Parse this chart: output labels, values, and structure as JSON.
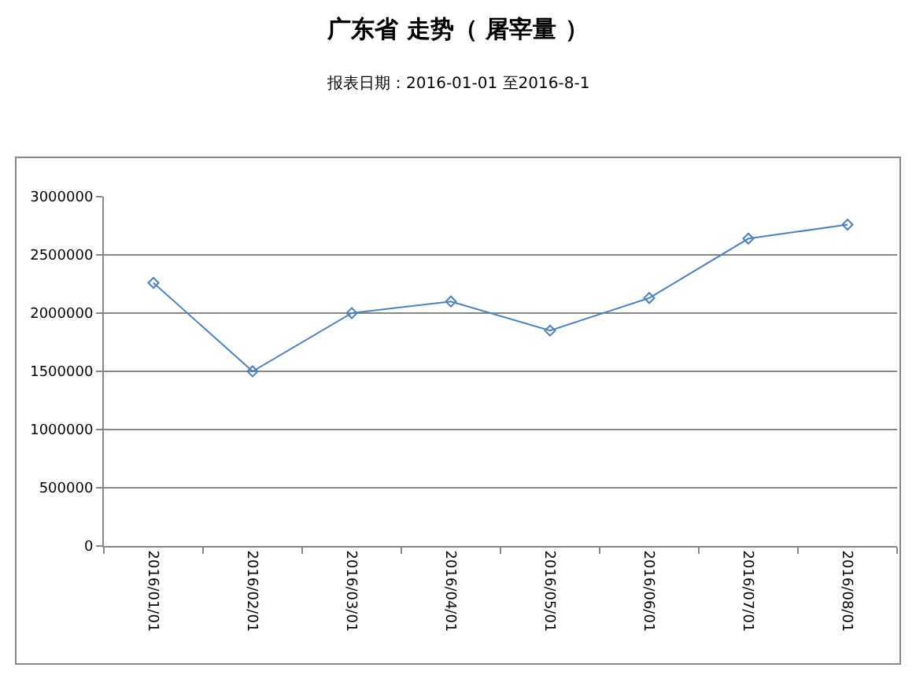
{
  "chart_data": {
    "type": "line",
    "title": "广东省 走势（ 屠宰量 ）",
    "subtitle": "报表日期：2016-01-01 至2016-8-1",
    "categories": [
      "2016/01/01",
      "2016/02/01",
      "2016/03/01",
      "2016/04/01",
      "2016/05/01",
      "2016/06/01",
      "2016/07/01",
      "2016/08/01"
    ],
    "series": [
      {
        "color": "#4f81bd",
        "values": [
          2260000,
          1500000,
          2000000,
          2100000,
          1850000,
          2130000,
          2640000,
          2760000
        ]
      }
    ],
    "ylim": [
      0,
      3000000
    ],
    "yticks": [
      0,
      500000,
      1000000,
      1500000,
      2000000,
      2500000,
      3000000
    ],
    "grid": "y",
    "marker": "diamond",
    "line_style": "solid"
  }
}
